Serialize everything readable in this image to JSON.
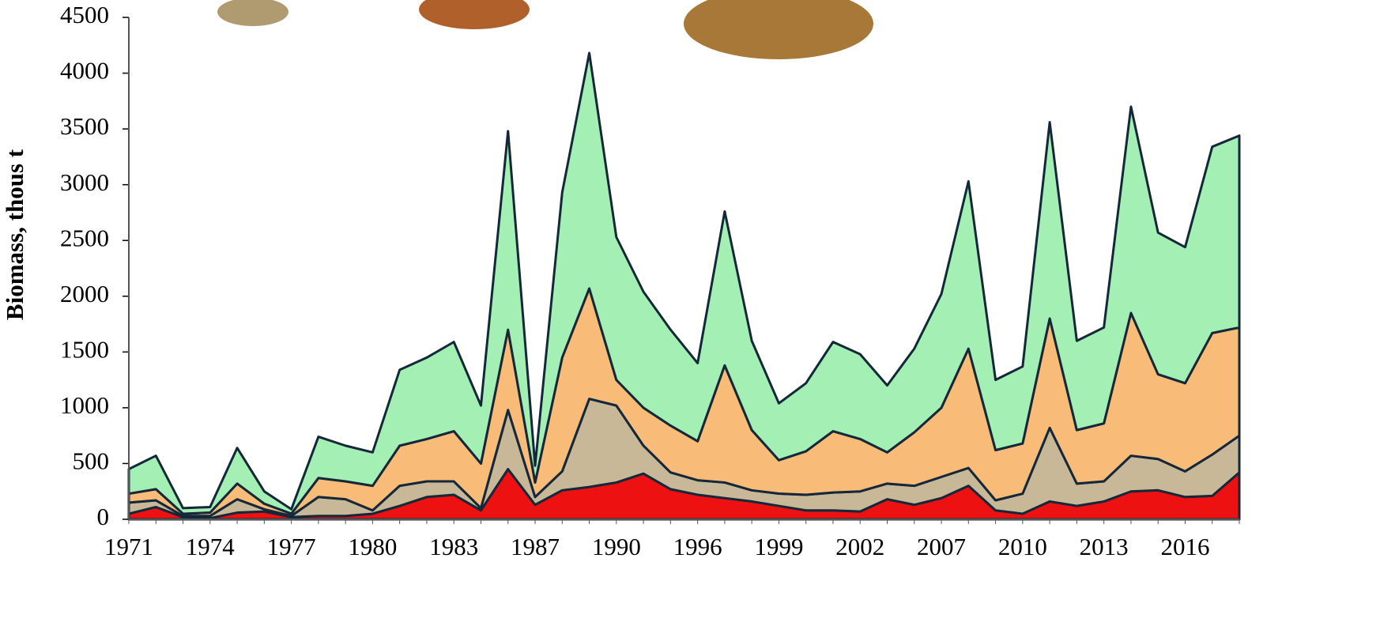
{
  "chart_data": {
    "type": "stacked_area",
    "y_label": "Biomass, thous t",
    "categories": [
      "1971",
      null,
      null,
      "1974",
      null,
      null,
      "1977",
      null,
      null,
      "1980",
      null,
      null,
      "1983",
      null,
      null,
      "1987",
      null,
      null,
      "1990",
      null,
      null,
      "1996",
      null,
      null,
      "1999",
      null,
      null,
      "2002",
      null,
      null,
      "2007",
      null,
      null,
      "2010",
      null,
      null,
      "2013",
      null,
      null,
      "2016",
      null,
      null
    ],
    "series": [
      {
        "color": "#ee1111",
        "values": [
          50,
          110,
          20,
          10,
          60,
          70,
          20,
          30,
          30,
          50,
          120,
          200,
          220,
          80,
          450,
          130,
          260,
          290,
          330,
          410,
          270,
          220,
          190,
          160,
          120,
          80,
          80,
          70,
          180,
          130,
          190,
          300,
          80,
          50,
          160,
          120,
          160,
          250,
          260,
          200,
          210,
          420
        ]
      },
      {
        "color": "#c8b898",
        "values": [
          100,
          60,
          10,
          20,
          120,
          20,
          10,
          170,
          150,
          30,
          180,
          140,
          120,
          20,
          530,
          70,
          170,
          790,
          690,
          250,
          150,
          130,
          140,
          100,
          110,
          140,
          160,
          180,
          140,
          170,
          190,
          160,
          90,
          180,
          660,
          200,
          180,
          320,
          280,
          230,
          370,
          330
        ]
      },
      {
        "color": "#f8bb78",
        "values": [
          80,
          100,
          20,
          30,
          140,
          50,
          20,
          170,
          160,
          220,
          360,
          380,
          450,
          400,
          720,
          130,
          1020,
          990,
          230,
          340,
          420,
          350,
          1050,
          540,
          300,
          390,
          550,
          470,
          280,
          480,
          620,
          1070,
          450,
          450,
          980,
          480,
          520,
          1280,
          760,
          790,
          1090,
          970
        ]
      },
      {
        "color": "#a4f0b4",
        "values": [
          220,
          300,
          50,
          50,
          320,
          110,
          40,
          370,
          320,
          300,
          680,
          730,
          800,
          520,
          1780,
          150,
          1480,
          2110,
          1280,
          1040,
          860,
          700,
          1380,
          800,
          510,
          610,
          800,
          760,
          600,
          750,
          1020,
          1500,
          630,
          690,
          1760,
          800,
          860,
          1850,
          1270,
          1220,
          1670,
          1720
        ]
      }
    ],
    "ylim": [
      0,
      4500
    ],
    "yticks": [
      0,
      500,
      1000,
      1500,
      2000,
      2500,
      3000,
      3500,
      4000,
      4500
    ]
  }
}
